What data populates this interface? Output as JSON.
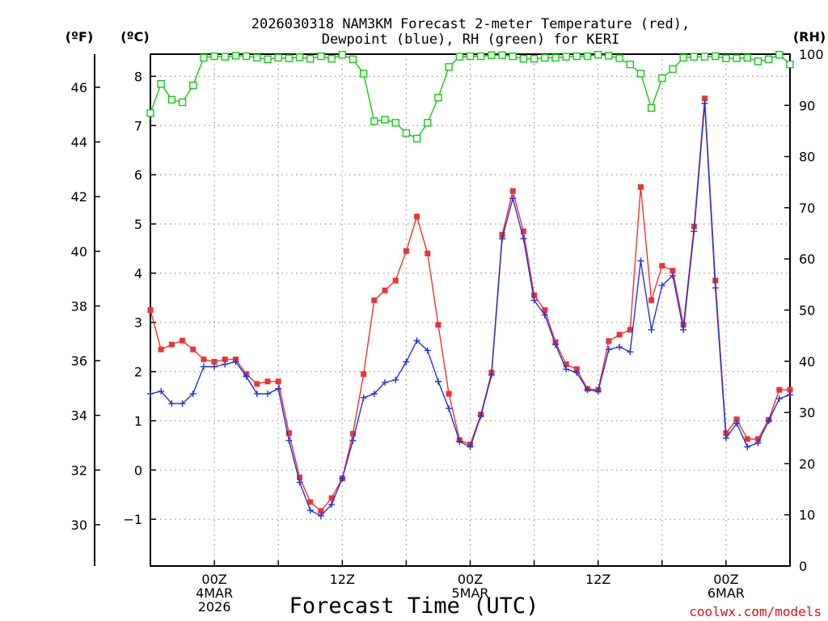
{
  "chart_data": {
    "type": "line",
    "title_line1": "2026030318 NAM3KM Forecast 2-meter Temperature (red),",
    "title_line2": "Dewpoint (blue), RH (green) for KERI",
    "xlabel": "Forecast Time (UTC)",
    "credit": "coolwx.com/models",
    "colors": {
      "temperature": "#ee3333",
      "dewpoint": "#2233dd",
      "rh": "#11cc11",
      "credit": "#dd1111",
      "grid": "#999999"
    },
    "units": {
      "fahrenheit": "(ºF)",
      "celsius": "(ºC)",
      "rh": "(RH)"
    },
    "x_hours_range": [
      -6,
      54
    ],
    "x_ticks": [
      {
        "hour": 0,
        "lines": [
          "00Z",
          "4MAR",
          "2026"
        ]
      },
      {
        "hour": 12,
        "lines": [
          "12Z"
        ]
      },
      {
        "hour": 24,
        "lines": [
          "00Z",
          "5MAR"
        ]
      },
      {
        "hour": 36,
        "lines": [
          "12Z"
        ]
      },
      {
        "hour": 48,
        "lines": [
          "00Z",
          "6MAR"
        ]
      }
    ],
    "celsius_axis": {
      "range": [
        -1.95,
        8.45
      ],
      "ticks": [
        -1,
        0,
        1,
        2,
        3,
        4,
        5,
        6,
        7,
        8
      ]
    },
    "fahrenheit_axis": {
      "ticks": [
        30,
        32,
        34,
        36,
        38,
        40,
        42,
        44,
        46
      ]
    },
    "rh_axis": {
      "range": [
        0,
        100
      ],
      "ticks": [
        0,
        10,
        20,
        30,
        40,
        50,
        60,
        70,
        80,
        90,
        100
      ]
    },
    "series": [
      {
        "name": "Temperature",
        "unit": "C",
        "marker": "filled-square",
        "values": [
          3.25,
          2.45,
          2.55,
          2.63,
          2.45,
          2.25,
          2.2,
          2.25,
          2.25,
          1.95,
          1.75,
          1.8,
          1.8,
          0.75,
          -0.15,
          -0.65,
          -0.83,
          -0.57,
          -0.17,
          0.74,
          1.95,
          3.45,
          3.65,
          3.85,
          4.45,
          5.15,
          4.4,
          2.95,
          1.55,
          0.61,
          0.52,
          1.13,
          1.98,
          4.78,
          5.67,
          4.85,
          3.55,
          3.25,
          2.6,
          2.15,
          2.05,
          1.65,
          1.63,
          2.62,
          2.75,
          2.85,
          5.75,
          3.45,
          4.15,
          4.05,
          2.95,
          4.95,
          7.55,
          3.85,
          0.75,
          1.03,
          0.63,
          0.63,
          1.02,
          1.63,
          1.63
        ]
      },
      {
        "name": "Dewpoint",
        "unit": "C",
        "marker": "plus",
        "values": [
          1.55,
          1.6,
          1.35,
          1.35,
          1.55,
          2.1,
          2.1,
          2.15,
          2.2,
          1.9,
          1.55,
          1.55,
          1.65,
          0.6,
          -0.25,
          -0.82,
          -0.93,
          -0.7,
          -0.17,
          0.6,
          1.47,
          1.55,
          1.78,
          1.83,
          2.2,
          2.63,
          2.43,
          1.8,
          1.25,
          0.58,
          0.47,
          1.1,
          1.93,
          4.7,
          5.52,
          4.7,
          3.45,
          3.15,
          2.55,
          2.05,
          1.98,
          1.63,
          1.6,
          2.45,
          2.5,
          2.4,
          4.25,
          2.85,
          3.75,
          3.95,
          2.85,
          4.85,
          7.45,
          3.7,
          0.65,
          0.95,
          0.47,
          0.55,
          1.0,
          1.45,
          1.53
        ]
      },
      {
        "name": "RH",
        "unit": "%",
        "marker": "open-square",
        "values": [
          88.5,
          94.2,
          91.1,
          90.6,
          93.9,
          99.3,
          99.6,
          99.5,
          99.7,
          99.6,
          99.3,
          99.0,
          99.3,
          99.2,
          99.4,
          99.1,
          99.6,
          99.1,
          99.9,
          99.0,
          96.2,
          86.9,
          87.2,
          86.6,
          84.6,
          83.5,
          86.6,
          91.5,
          97.5,
          99.5,
          99.6,
          99.6,
          99.8,
          99.8,
          99.6,
          99.1,
          99.1,
          99.3,
          99.3,
          99.5,
          99.6,
          99.6,
          99.9,
          99.7,
          99.2,
          98.0,
          96.2,
          89.5,
          95.3,
          97.1,
          99.3,
          99.5,
          99.5,
          99.6,
          99.2,
          99.2,
          99.3,
          98.6,
          99.0,
          99.9,
          98.0
        ]
      }
    ]
  }
}
